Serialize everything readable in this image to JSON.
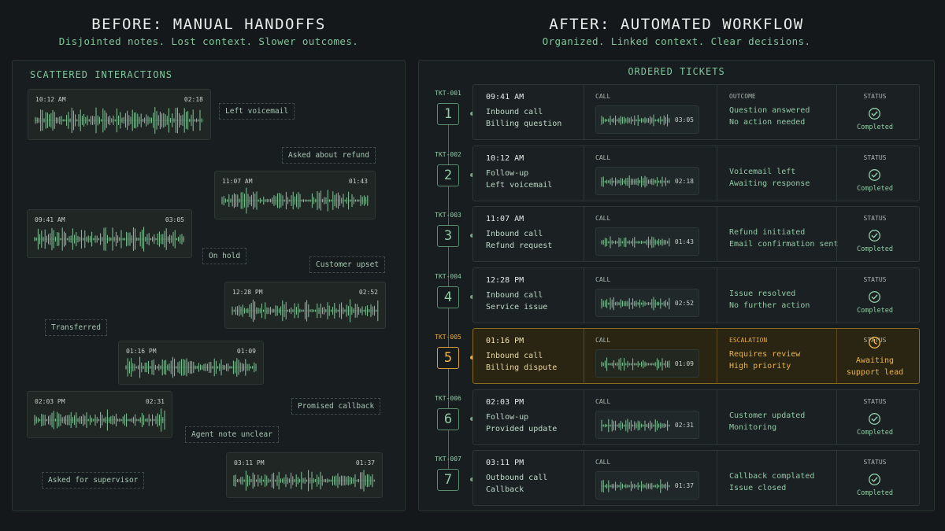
{
  "before": {
    "title": "BEFORE: MANUAL HANDOFFS",
    "subtitle": "Disjointed notes. Lost context. Slower outcomes.",
    "panel_title": "SCATTERED INTERACTIONS",
    "clips": [
      {
        "time": "10:12 AM",
        "duration": "02:18"
      },
      {
        "time": "11:07 AM",
        "duration": "01:43"
      },
      {
        "time": "09:41 AM",
        "duration": "03:05"
      },
      {
        "time": "12:28 PM",
        "duration": "02:52"
      },
      {
        "time": "01:16 PM",
        "duration": "01:09"
      },
      {
        "time": "02:03 PM",
        "duration": "02:31"
      },
      {
        "time": "03:11 PM",
        "duration": "01:37"
      }
    ],
    "notes": [
      "Left voicemail",
      "Asked about refund",
      "On hold",
      "Customer upset",
      "Transferred",
      "Promised callback",
      "Agent note unclear",
      "Asked for supervisor"
    ]
  },
  "after": {
    "title": "AFTER: AUTOMATED WORKFLOW",
    "subtitle": "Organized. Linked context. Clear decisions.",
    "panel_title": "ORDERED TICKETS",
    "call_label": "CALL",
    "status_label": "STATUS",
    "tickets": [
      {
        "id": "TKT-001",
        "num": "1",
        "time": "09:41 AM",
        "line1": "Inbound call",
        "line2": "Billing question",
        "duration": "03:05",
        "outcome_label": "OUTCOME",
        "outcome1": "Question answered",
        "outcome2": "No action needed",
        "status": "Completed"
      },
      {
        "id": "TKT-002",
        "num": "2",
        "time": "10:12 AM",
        "line1": "Follow-up",
        "line2": "Left voicemail",
        "duration": "02:18",
        "outcome_label": "",
        "outcome1": "Voicemail left",
        "outcome2": "Awaiting response",
        "status": "Completed"
      },
      {
        "id": "TKT-003",
        "num": "3",
        "time": "11:07 AM",
        "line1": "Inbound call",
        "line2": "Refund request",
        "duration": "01:43",
        "outcome_label": "",
        "outcome1": "Refund initiated",
        "outcome2": "Email confirmation sent",
        "status": "Completed"
      },
      {
        "id": "TKT-004",
        "num": "4",
        "time": "12:28 PM",
        "line1": "Inbound call",
        "line2": "Service issue",
        "duration": "02:52",
        "outcome_label": "",
        "outcome1": "Issue resolved",
        "outcome2": "No further action",
        "status": "Completed"
      },
      {
        "id": "TKT-005",
        "num": "5",
        "time": "01:16 PM",
        "line1": "Inbound call",
        "line2": "Billing dispute",
        "duration": "01:09",
        "outcome_label": "ESCALATION",
        "outcome1": "Requires review",
        "outcome2": "High priority",
        "status": "Awaiting support lead",
        "status_line1": "Awaiting",
        "status_line2": "support lead",
        "escalated": true
      },
      {
        "id": "TKT-006",
        "num": "6",
        "time": "02:03 PM",
        "line1": "Follow-up",
        "line2": "Provided update",
        "duration": "02:31",
        "outcome_label": "",
        "outcome1": "Customer updated",
        "outcome2": "Monitoring",
        "status": "Completed"
      },
      {
        "id": "TKT-007",
        "num": "7",
        "time": "03:11 PM",
        "line1": "Outbound call",
        "line2": "Callback",
        "duration": "01:37",
        "outcome_label": "",
        "outcome1": "Callback complated",
        "outcome2": "Issue closed",
        "status": "Completed"
      }
    ]
  },
  "colors": {
    "accent_green": "#7fc79b",
    "escalation_amber": "#e8a93a",
    "background": "#14181b"
  },
  "icons": {
    "completed": "check-circle-icon",
    "awaiting": "clock-icon",
    "waveform": "waveform-icon"
  }
}
